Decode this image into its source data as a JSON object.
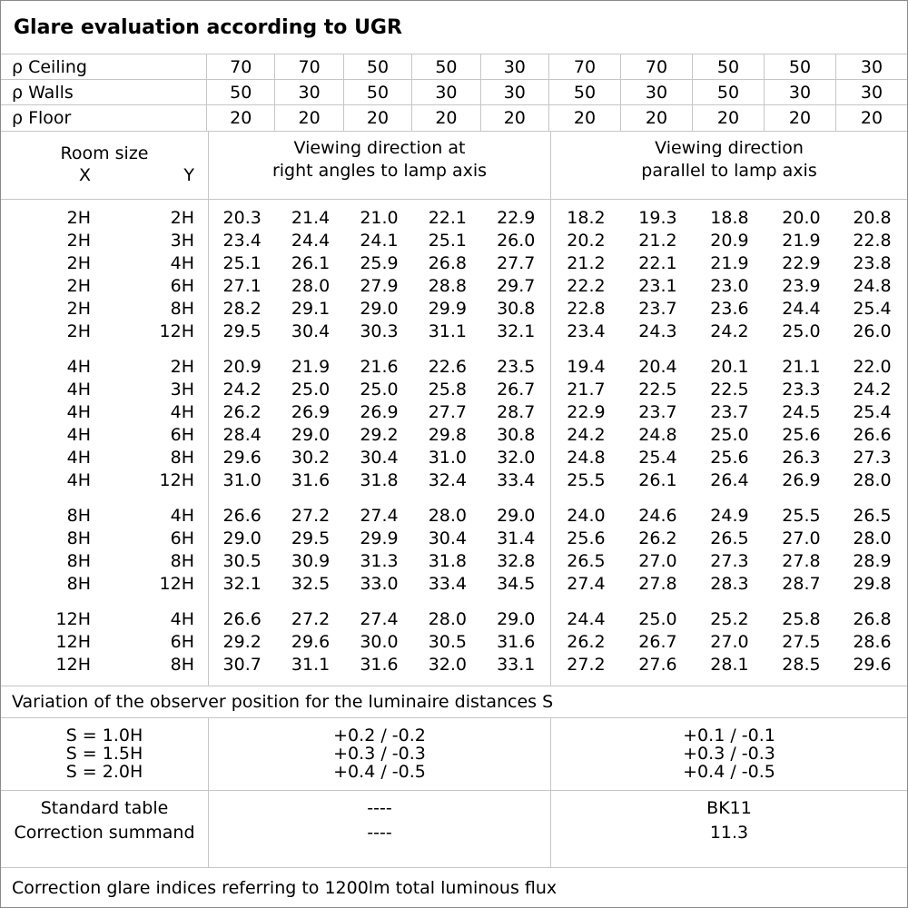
{
  "title": "Glare evaluation according to UGR",
  "reflectances": {
    "rows": [
      {
        "label": "ρ Ceiling",
        "values": [
          "70",
          "70",
          "50",
          "50",
          "30",
          "70",
          "70",
          "50",
          "50",
          "30"
        ]
      },
      {
        "label": "ρ Walls",
        "values": [
          "50",
          "30",
          "50",
          "30",
          "30",
          "50",
          "30",
          "50",
          "30",
          "30"
        ]
      },
      {
        "label": "ρ Floor",
        "values": [
          "20",
          "20",
          "20",
          "20",
          "20",
          "20",
          "20",
          "20",
          "20",
          "20"
        ]
      }
    ]
  },
  "room_size_header": {
    "title": "Room size",
    "x": "X",
    "y": "Y"
  },
  "group_headers": {
    "right_angles_line1": "Viewing direction at",
    "right_angles_line2": "right angles to lamp axis",
    "parallel_line1": "Viewing direction",
    "parallel_line2": "parallel to lamp axis"
  },
  "ugr_groups": [
    {
      "rows": [
        {
          "x": "2H",
          "y": "2H",
          "right_angles": [
            "20.3",
            "21.4",
            "21.0",
            "22.1",
            "22.9"
          ],
          "parallel": [
            "18.2",
            "19.3",
            "18.8",
            "20.0",
            "20.8"
          ]
        },
        {
          "x": "2H",
          "y": "3H",
          "right_angles": [
            "23.4",
            "24.4",
            "24.1",
            "25.1",
            "26.0"
          ],
          "parallel": [
            "20.2",
            "21.2",
            "20.9",
            "21.9",
            "22.8"
          ]
        },
        {
          "x": "2H",
          "y": "4H",
          "right_angles": [
            "25.1",
            "26.1",
            "25.9",
            "26.8",
            "27.7"
          ],
          "parallel": [
            "21.2",
            "22.1",
            "21.9",
            "22.9",
            "23.8"
          ]
        },
        {
          "x": "2H",
          "y": "6H",
          "right_angles": [
            "27.1",
            "28.0",
            "27.9",
            "28.8",
            "29.7"
          ],
          "parallel": [
            "22.2",
            "23.1",
            "23.0",
            "23.9",
            "24.8"
          ]
        },
        {
          "x": "2H",
          "y": "8H",
          "right_angles": [
            "28.2",
            "29.1",
            "29.0",
            "29.9",
            "30.8"
          ],
          "parallel": [
            "22.8",
            "23.7",
            "23.6",
            "24.4",
            "25.4"
          ]
        },
        {
          "x": "2H",
          "y": "12H",
          "right_angles": [
            "29.5",
            "30.4",
            "30.3",
            "31.1",
            "32.1"
          ],
          "parallel": [
            "23.4",
            "24.3",
            "24.2",
            "25.0",
            "26.0"
          ]
        }
      ]
    },
    {
      "rows": [
        {
          "x": "4H",
          "y": "2H",
          "right_angles": [
            "20.9",
            "21.9",
            "21.6",
            "22.6",
            "23.5"
          ],
          "parallel": [
            "19.4",
            "20.4",
            "20.1",
            "21.1",
            "22.0"
          ]
        },
        {
          "x": "4H",
          "y": "3H",
          "right_angles": [
            "24.2",
            "25.0",
            "25.0",
            "25.8",
            "26.7"
          ],
          "parallel": [
            "21.7",
            "22.5",
            "22.5",
            "23.3",
            "24.2"
          ]
        },
        {
          "x": "4H",
          "y": "4H",
          "right_angles": [
            "26.2",
            "26.9",
            "26.9",
            "27.7",
            "28.7"
          ],
          "parallel": [
            "22.9",
            "23.7",
            "23.7",
            "24.5",
            "25.4"
          ]
        },
        {
          "x": "4H",
          "y": "6H",
          "right_angles": [
            "28.4",
            "29.0",
            "29.2",
            "29.8",
            "30.8"
          ],
          "parallel": [
            "24.2",
            "24.8",
            "25.0",
            "25.6",
            "26.6"
          ]
        },
        {
          "x": "4H",
          "y": "8H",
          "right_angles": [
            "29.6",
            "30.2",
            "30.4",
            "31.0",
            "32.0"
          ],
          "parallel": [
            "24.8",
            "25.4",
            "25.6",
            "26.3",
            "27.3"
          ]
        },
        {
          "x": "4H",
          "y": "12H",
          "right_angles": [
            "31.0",
            "31.6",
            "31.8",
            "32.4",
            "33.4"
          ],
          "parallel": [
            "25.5",
            "26.1",
            "26.4",
            "26.9",
            "28.0"
          ]
        }
      ]
    },
    {
      "rows": [
        {
          "x": "8H",
          "y": "4H",
          "right_angles": [
            "26.6",
            "27.2",
            "27.4",
            "28.0",
            "29.0"
          ],
          "parallel": [
            "24.0",
            "24.6",
            "24.9",
            "25.5",
            "26.5"
          ]
        },
        {
          "x": "8H",
          "y": "6H",
          "right_angles": [
            "29.0",
            "29.5",
            "29.9",
            "30.4",
            "31.4"
          ],
          "parallel": [
            "25.6",
            "26.2",
            "26.5",
            "27.0",
            "28.0"
          ]
        },
        {
          "x": "8H",
          "y": "8H",
          "right_angles": [
            "30.5",
            "30.9",
            "31.3",
            "31.8",
            "32.8"
          ],
          "parallel": [
            "26.5",
            "27.0",
            "27.3",
            "27.8",
            "28.9"
          ]
        },
        {
          "x": "8H",
          "y": "12H",
          "right_angles": [
            "32.1",
            "32.5",
            "33.0",
            "33.4",
            "34.5"
          ],
          "parallel": [
            "27.4",
            "27.8",
            "28.3",
            "28.7",
            "29.8"
          ]
        }
      ]
    },
    {
      "rows": [
        {
          "x": "12H",
          "y": "4H",
          "right_angles": [
            "26.6",
            "27.2",
            "27.4",
            "28.0",
            "29.0"
          ],
          "parallel": [
            "24.4",
            "25.0",
            "25.2",
            "25.8",
            "26.8"
          ]
        },
        {
          "x": "12H",
          "y": "6H",
          "right_angles": [
            "29.2",
            "29.6",
            "30.0",
            "30.5",
            "31.6"
          ],
          "parallel": [
            "26.2",
            "26.7",
            "27.0",
            "27.5",
            "28.6"
          ]
        },
        {
          "x": "12H",
          "y": "8H",
          "right_angles": [
            "30.7",
            "31.1",
            "31.6",
            "32.0",
            "33.1"
          ],
          "parallel": [
            "27.2",
            "27.6",
            "28.1",
            "28.5",
            "29.6"
          ]
        }
      ]
    }
  ],
  "variation_note": "Variation of the observer position for the luminaire distances S",
  "spacing_block": {
    "rows": [
      {
        "label": "S = 1.0H",
        "right_angles": "+0.2 / -0.2",
        "parallel": "+0.1 / -0.1"
      },
      {
        "label": "S = 1.5H",
        "right_angles": "+0.3 / -0.3",
        "parallel": "+0.3 / -0.3"
      },
      {
        "label": "S = 2.0H",
        "right_angles": "+0.4 / -0.5",
        "parallel": "+0.4 / -0.5"
      }
    ]
  },
  "summary_block": {
    "rows": [
      {
        "label": "Standard table",
        "right_angles": "----",
        "parallel": "BK11"
      },
      {
        "label": "Correction summand",
        "right_angles": "----",
        "parallel": "11.3"
      }
    ]
  },
  "footer_note": "Correction glare indices referring to 1200lm total luminous flux"
}
